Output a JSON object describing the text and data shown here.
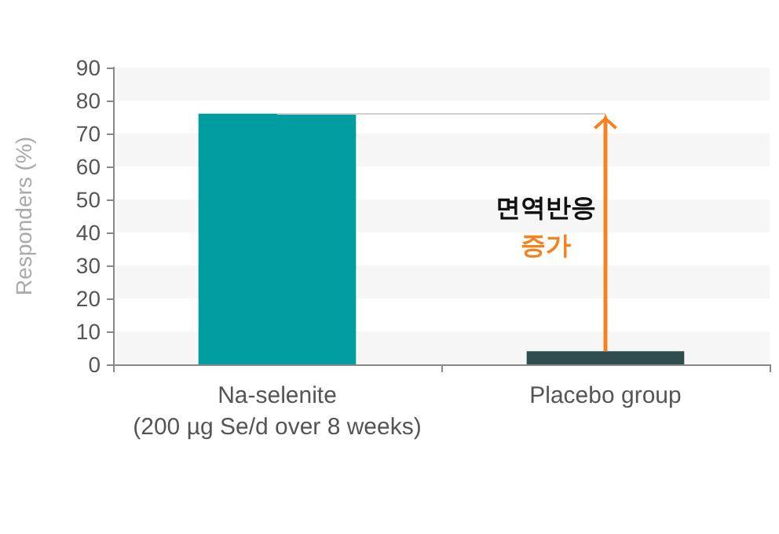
{
  "chart_data": {
    "type": "bar",
    "ylabel": "Responders (%)",
    "categories": [
      "Na-selenite\n(200 µg Se/d over 8 weeks)",
      "Placebo group"
    ],
    "values": [
      76,
      4
    ],
    "colors": [
      "#009c9f",
      "#2f4d4f"
    ],
    "ylim": [
      0,
      90
    ],
    "yticks": [
      0,
      10,
      20,
      30,
      40,
      50,
      60,
      70,
      80,
      90
    ],
    "ref_lines": [
      {
        "axis": "y",
        "value": 76,
        "color": "#d0d0d0"
      }
    ],
    "bands": [
      {
        "axis": "y",
        "from": 0,
        "to": 10,
        "color": "#f6f6f6"
      },
      {
        "axis": "y",
        "from": 20,
        "to": 30,
        "color": "#f6f6f6"
      },
      {
        "axis": "y",
        "from": 40,
        "to": 50,
        "color": "#f6f6f6"
      },
      {
        "axis": "y",
        "from": 60,
        "to": 70,
        "color": "#f6f6f6"
      },
      {
        "axis": "y",
        "from": 80,
        "to": 90,
        "color": "#f6f6f6"
      }
    ],
    "annotations": [
      "면역반응",
      "증가"
    ]
  }
}
